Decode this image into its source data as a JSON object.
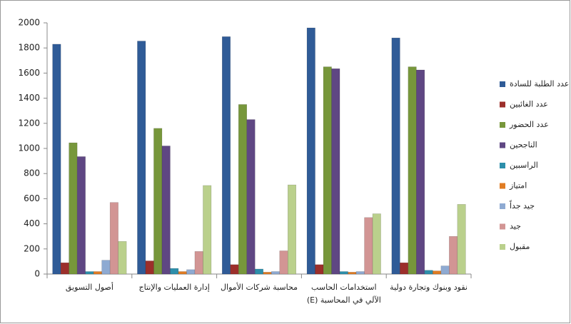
{
  "chart_data": {
    "type": "bar",
    "categories": [
      "أصول التسويق",
      "إدارة العمليات والإنتاج",
      "محاسبة شركات الأموال",
      "استخدامات الحاسب الآلي في المحاسبة (E)",
      "نقود وبنوك وتجارة دولية"
    ],
    "series": [
      {
        "name": "عدد الطلبة للسادة",
        "color": "#2f5b97",
        "values": [
          1830,
          1855,
          1890,
          1960,
          1880
        ]
      },
      {
        "name": "عدد الغائبين",
        "color": "#9c2f2b",
        "values": [
          90,
          105,
          75,
          75,
          90
        ]
      },
      {
        "name": "عدد الحضور",
        "color": "#77973b",
        "values": [
          1045,
          1160,
          1350,
          1650,
          1650
        ]
      },
      {
        "name": "الناجحين",
        "color": "#5f4783",
        "values": [
          935,
          1020,
          1230,
          1635,
          1625
        ]
      },
      {
        "name": "الراسبين",
        "color": "#2d8fab",
        "values": [
          20,
          45,
          40,
          20,
          30
        ]
      },
      {
        "name": "امتياز",
        "color": "#e07c23",
        "values": [
          20,
          20,
          15,
          15,
          25
        ]
      },
      {
        "name": "جيد جداً",
        "color": "#8eaad2",
        "values": [
          110,
          35,
          20,
          20,
          65
        ]
      },
      {
        "name": "جيد",
        "color": "#d29594",
        "values": [
          570,
          180,
          185,
          450,
          300
        ]
      },
      {
        "name": "مقبول",
        "color": "#bad08c",
        "values": [
          260,
          705,
          710,
          480,
          555
        ]
      }
    ],
    "ylim": [
      0,
      2000
    ],
    "yticks": [
      0,
      200,
      400,
      600,
      800,
      1000,
      1200,
      1400,
      1600,
      1800,
      2000
    ],
    "grid": false,
    "legend": "right"
  }
}
